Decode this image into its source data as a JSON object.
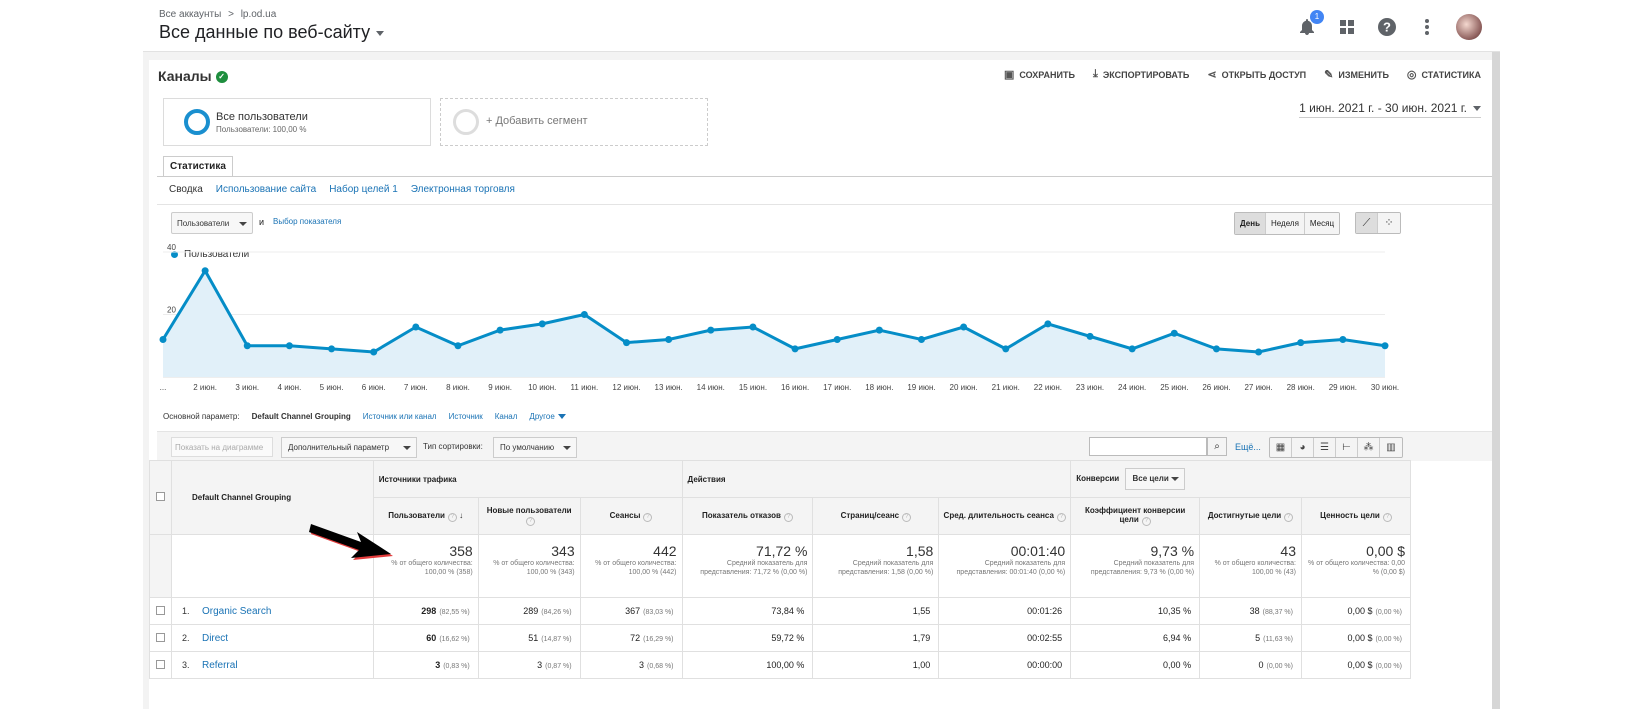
{
  "header": {
    "breadcrumb": [
      "Все аккаунты",
      ">",
      "lp.od.ua"
    ],
    "view_title": "Все данные по веб-сайту",
    "notification_count": "1",
    "icons": [
      "bell-icon",
      "apps-grid-icon",
      "help-icon",
      "more-vert-icon"
    ]
  },
  "report": {
    "title": "Каналы",
    "actions": [
      {
        "label": "СОХРАНИТЬ",
        "icon": "save-icon"
      },
      {
        "label": "ЭКСПОРТИРОВАТЬ",
        "icon": "download-icon"
      },
      {
        "label": "ОТКРЫТЬ ДОСТУП",
        "icon": "share-icon"
      },
      {
        "label": "ИЗМЕНИТЬ",
        "icon": "edit-icon"
      },
      {
        "label": "СТАТИСТИКА",
        "icon": "insights-icon"
      }
    ]
  },
  "segments": {
    "active_name": "Все пользователи",
    "active_sub": "Пользователи: 100,00 %",
    "add_label": "+ Добавить сегмент"
  },
  "date_range": "1 июн. 2021 г. - 30 июн. 2021 г.",
  "tabs": [
    "Статистика"
  ],
  "subnav": [
    "Сводка",
    "Использование сайта",
    "Набор целей 1",
    "Электронная торговля"
  ],
  "controls": {
    "metric": "Пользователи",
    "and": "и",
    "pick_metric": "Выбор показателя",
    "granularity": [
      "День",
      "Неделя",
      "Месяц"
    ],
    "granularity_active": "День"
  },
  "chart_data": {
    "type": "line",
    "series": [
      {
        "name": "Пользователи",
        "values": [
          12,
          34,
          10,
          10,
          9,
          8,
          16,
          10,
          15,
          17,
          20,
          11,
          12,
          15,
          16,
          9,
          12,
          15,
          12,
          16,
          9,
          17,
          13,
          9,
          14,
          9,
          8,
          11,
          12,
          10
        ]
      }
    ],
    "x": [
      "...",
      "2 июн.",
      "3 июн.",
      "4 июн.",
      "5 июн.",
      "6 июн.",
      "7 июн.",
      "8 июн.",
      "9 июн.",
      "10 июн.",
      "11 июн.",
      "12 июн.",
      "13 июн.",
      "14 июн.",
      "15 июн.",
      "16 июн.",
      "17 июн.",
      "18 июн.",
      "19 июн.",
      "20 июн.",
      "21 июн.",
      "22 июн.",
      "23 июн.",
      "24 июн.",
      "25 июн.",
      "26 июн.",
      "27 июн.",
      "28 июн.",
      "29 июн.",
      "30 июн."
    ],
    "yticks": [
      "40",
      "20"
    ],
    "ylim": [
      0,
      40
    ],
    "color": "#058dc7",
    "fill": "#e1f0f9"
  },
  "dimensions": {
    "label": "Основной параметр:",
    "active": "Default Channel Grouping",
    "links": [
      "Источник или канал",
      "Источник",
      "Канал",
      "Другое"
    ]
  },
  "toolbar": {
    "plot_rows": "Показать на диаграмме",
    "secondary": "Дополнительный параметр",
    "sort_label": "Тип сортировки:",
    "sort_value": "По умолчанию",
    "more": "Ещё...",
    "view_icons": [
      "table-view-icon",
      "pie-view-icon",
      "performance-view-icon",
      "comparison-view-icon",
      "term-cloud-icon",
      "pivot-view-icon"
    ]
  },
  "table": {
    "dim_header": "Default Channel Grouping",
    "groups": [
      "Источники трафика",
      "Действия",
      "Конверсии"
    ],
    "goal_select": "Все цели",
    "columns": [
      "Пользователи",
      "Новые пользователи",
      "Сеансы",
      "Показатель отказов",
      "Страниц/сеанс",
      "Сред. длительность сеанса",
      "Коэффициент конверсии цели",
      "Достигнутые цели",
      "Ценность цели"
    ],
    "totals": [
      {
        "big": "358",
        "small": "% от общего количества: 100,00 % (358)"
      },
      {
        "big": "343",
        "small": "% от общего количества: 100,00 % (343)"
      },
      {
        "big": "442",
        "small": "% от общего количества: 100,00 % (442)"
      },
      {
        "big": "71,72 %",
        "small": "Средний показатель для представления: 71,72 % (0,00 %)"
      },
      {
        "big": "1,58",
        "small": "Средний показатель для представления: 1,58 (0,00 %)"
      },
      {
        "big": "00:01:40",
        "small": "Средний показатель для представления: 00:01:40 (0,00 %)"
      },
      {
        "big": "9,73 %",
        "small": "Средний показатель для представления: 9,73 % (0,00 %)"
      },
      {
        "big": "43",
        "small": "% от общего количества: 100,00 % (43)"
      },
      {
        "big": "0,00 $",
        "small": "% от общего количества: 0,00 % (0,00 $)"
      }
    ],
    "rows": [
      {
        "idx": "1.",
        "name": "Organic Search",
        "cells": [
          [
            "298",
            "(82,55 %)"
          ],
          [
            "289",
            "(84,26 %)"
          ],
          [
            "367",
            "(83,03 %)"
          ],
          [
            "73,84 %",
            ""
          ],
          [
            "1,55",
            ""
          ],
          [
            "00:01:26",
            ""
          ],
          [
            "10,35 %",
            ""
          ],
          [
            "38",
            "(88,37 %)"
          ],
          [
            "0,00 $",
            "(0,00 %)"
          ]
        ]
      },
      {
        "idx": "2.",
        "name": "Direct",
        "cells": [
          [
            "60",
            "(16,62 %)"
          ],
          [
            "51",
            "(14,87 %)"
          ],
          [
            "72",
            "(16,29 %)"
          ],
          [
            "59,72 %",
            ""
          ],
          [
            "1,79",
            ""
          ],
          [
            "00:02:55",
            ""
          ],
          [
            "6,94 %",
            ""
          ],
          [
            "5",
            "(11,63 %)"
          ],
          [
            "0,00 $",
            "(0,00 %)"
          ]
        ]
      },
      {
        "idx": "3.",
        "name": "Referral",
        "cells": [
          [
            "3",
            "(0,83 %)"
          ],
          [
            "3",
            "(0,87 %)"
          ],
          [
            "3",
            "(0,68 %)"
          ],
          [
            "100,00 %",
            ""
          ],
          [
            "1,00",
            ""
          ],
          [
            "00:00:00",
            ""
          ],
          [
            "0,00 %",
            ""
          ],
          [
            "0",
            "(0,00 %)"
          ],
          [
            "0,00 $",
            "(0,00 %)"
          ]
        ]
      }
    ]
  }
}
